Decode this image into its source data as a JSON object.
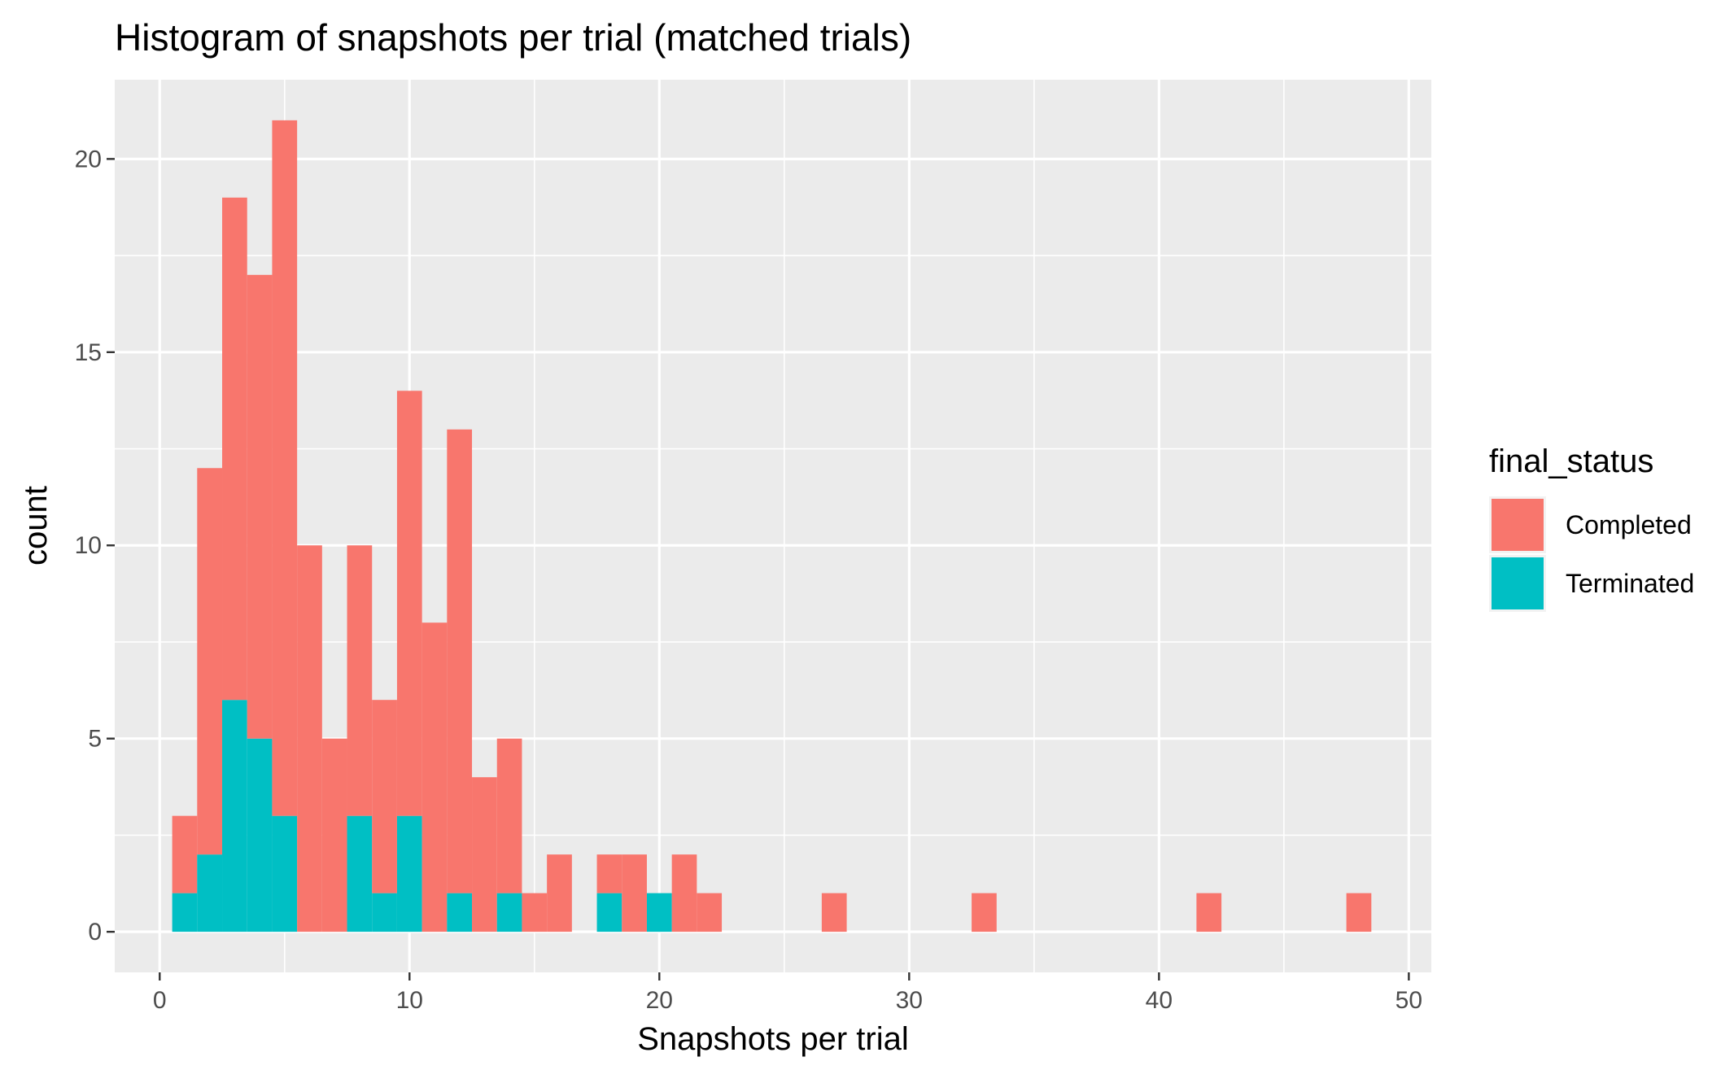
{
  "chart_data": {
    "type": "bar",
    "subtype": "stacked-histogram",
    "title": "Histogram of snapshots per trial (matched trials)",
    "xlabel": "Snapshots per trial",
    "ylabel": "count",
    "xlim": [
      -1.8,
      50.9
    ],
    "ylim": [
      -1.05,
      22.05
    ],
    "x_ticks": [
      0,
      10,
      20,
      30,
      40,
      50
    ],
    "y_ticks": [
      0,
      5,
      10,
      15,
      20
    ],
    "binwidth": 1,
    "grid": true,
    "legend": {
      "title": "final_status",
      "position": "right",
      "entries": [
        "Completed",
        "Terminated"
      ]
    },
    "colors": {
      "Completed": "#F8766D",
      "Terminated": "#00BFC4",
      "panel": "#EBEBEB",
      "grid": "#FFFFFF"
    },
    "x": [
      1,
      2,
      3,
      4,
      5,
      6,
      7,
      8,
      9,
      10,
      11,
      12,
      13,
      14,
      15,
      16,
      17,
      18,
      19,
      20,
      21,
      22,
      23,
      24,
      25,
      26,
      27,
      28,
      29,
      30,
      31,
      32,
      33,
      34,
      35,
      36,
      37,
      38,
      39,
      40,
      41,
      42,
      43,
      44,
      45,
      46,
      47,
      48
    ],
    "series": [
      {
        "name": "Completed",
        "values": [
          2,
          10,
          13,
          12,
          18,
          10,
          5,
          7,
          5,
          11,
          8,
          12,
          4,
          4,
          1,
          2,
          0,
          1,
          2,
          0,
          2,
          1,
          0,
          0,
          0,
          0,
          1,
          0,
          0,
          0,
          0,
          0,
          1,
          0,
          0,
          0,
          0,
          0,
          0,
          0,
          0,
          1,
          0,
          0,
          0,
          0,
          0,
          1
        ]
      },
      {
        "name": "Terminated",
        "values": [
          1,
          2,
          6,
          5,
          3,
          0,
          0,
          3,
          1,
          3,
          0,
          1,
          0,
          1,
          0,
          0,
          0,
          1,
          0,
          1,
          0,
          0,
          0,
          0,
          0,
          0,
          0,
          0,
          0,
          0,
          0,
          0,
          0,
          0,
          0,
          0,
          0,
          0,
          0,
          0,
          0,
          0,
          0,
          0,
          0,
          0,
          0,
          0
        ]
      }
    ]
  }
}
